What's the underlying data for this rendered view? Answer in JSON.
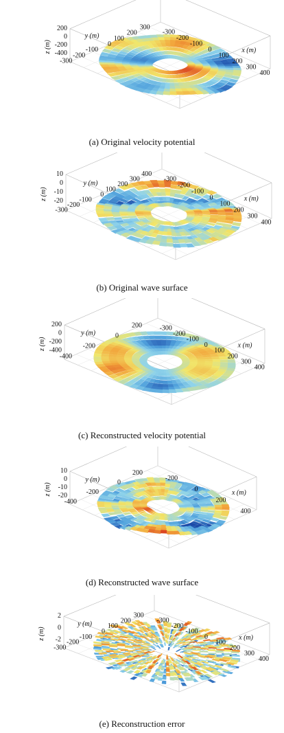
{
  "chart_data": [
    {
      "type": "surface3d",
      "caption": "(a) Original velocity potential",
      "xlabel": "x (m)",
      "ylabel": "y (m)",
      "zlabel": "z (m)",
      "z_ticks": [
        "200",
        "0",
        "-200",
        "-400"
      ],
      "x_ticks": [
        "-300",
        "-200",
        "-100",
        "0",
        "100",
        "200",
        "300",
        "400"
      ],
      "y_ticks": [
        "-300",
        "-200",
        "-100",
        "0",
        "100",
        "200",
        "300"
      ],
      "xlim": [
        -400,
        400
      ],
      "ylim": [
        -400,
        400
      ],
      "annulus": {
        "inner_radius_m": 100,
        "outer_radius_m": 400
      },
      "colormap": [
        "#1b4aa8",
        "#4fa0dc",
        "#8fd3ea",
        "#f1e66a",
        "#f2a33a",
        "#d7361d"
      ],
      "surface_style": "smooth"
    },
    {
      "type": "surface3d",
      "caption": "(b) Original wave surface",
      "xlabel": "x (m)",
      "ylabel": "y (m)",
      "zlabel": "z (m)",
      "z_ticks": [
        "10",
        "0",
        "-10",
        "-20"
      ],
      "x_ticks": [
        "-300",
        "-200",
        "-100",
        "0",
        "100",
        "200",
        "300",
        "400"
      ],
      "y_ticks": [
        "-300",
        "-200",
        "-100",
        "0",
        "100",
        "200",
        "300",
        "400"
      ],
      "xlim": [
        -400,
        400
      ],
      "ylim": [
        -400,
        400
      ],
      "annulus": {
        "inner_radius_m": 100,
        "outer_radius_m": 400
      },
      "colormap": [
        "#1b4aa8",
        "#4fa0dc",
        "#8fd3ea",
        "#f1e66a",
        "#f2a33a",
        "#d7361d"
      ],
      "surface_style": "rough"
    },
    {
      "type": "surface3d",
      "caption": "(c) Reconstructed velocity potential",
      "xlabel": "x (m)",
      "ylabel": "y (m)",
      "zlabel": "z (m)",
      "z_ticks": [
        "200",
        "0",
        "-200",
        "-400"
      ],
      "x_ticks": [
        "-300",
        "-200",
        "-100",
        "0",
        "100",
        "200",
        "300",
        "400"
      ],
      "y_ticks": [
        "-400",
        "-200",
        "0",
        "200"
      ],
      "xlim": [
        -400,
        400
      ],
      "ylim": [
        -400,
        400
      ],
      "annulus": {
        "inner_radius_m": 100,
        "outer_radius_m": 400
      },
      "colormap": [
        "#1b4aa8",
        "#4fa0dc",
        "#8fd3ea",
        "#f1e66a",
        "#f2a33a",
        "#d7361d"
      ],
      "surface_style": "smooth"
    },
    {
      "type": "surface3d",
      "caption": "(d) Reconstructed wave surface",
      "xlabel": "x (m)",
      "ylabel": "y (m)",
      "zlabel": "z (m)",
      "z_ticks": [
        "10",
        "0",
        "-10",
        "-20"
      ],
      "x_ticks": [
        "-200",
        "0",
        "200",
        "400"
      ],
      "y_ticks": [
        "-400",
        "-200",
        "0",
        "200"
      ],
      "xlim": [
        -400,
        400
      ],
      "ylim": [
        -400,
        400
      ],
      "annulus": {
        "inner_radius_m": 100,
        "outer_radius_m": 400
      },
      "colormap": [
        "#1b4aa8",
        "#4fa0dc",
        "#8fd3ea",
        "#f1e66a",
        "#f2a33a",
        "#d7361d"
      ],
      "surface_style": "rough"
    },
    {
      "type": "surface3d",
      "caption": "(e) Reconstruction error",
      "xlabel": "x (m)",
      "ylabel": "y (m)",
      "zlabel": "z (m)",
      "z_ticks": [
        "2",
        "0",
        "-2"
      ],
      "x_ticks": [
        "-300",
        "-200",
        "-100",
        "0",
        "100",
        "200",
        "300",
        "400"
      ],
      "y_ticks": [
        "-300",
        "-200",
        "-100",
        "0",
        "100",
        "200",
        "300"
      ],
      "xlim": [
        -400,
        400
      ],
      "ylim": [
        -400,
        400
      ],
      "annulus": {
        "inner_radius_m": 100,
        "outer_radius_m": 400
      },
      "colormap": [
        "#1b4aa8",
        "#4fa0dc",
        "#8fd3ea",
        "#f1e66a",
        "#f2a33a",
        "#d7361d"
      ],
      "surface_style": "radial"
    }
  ]
}
